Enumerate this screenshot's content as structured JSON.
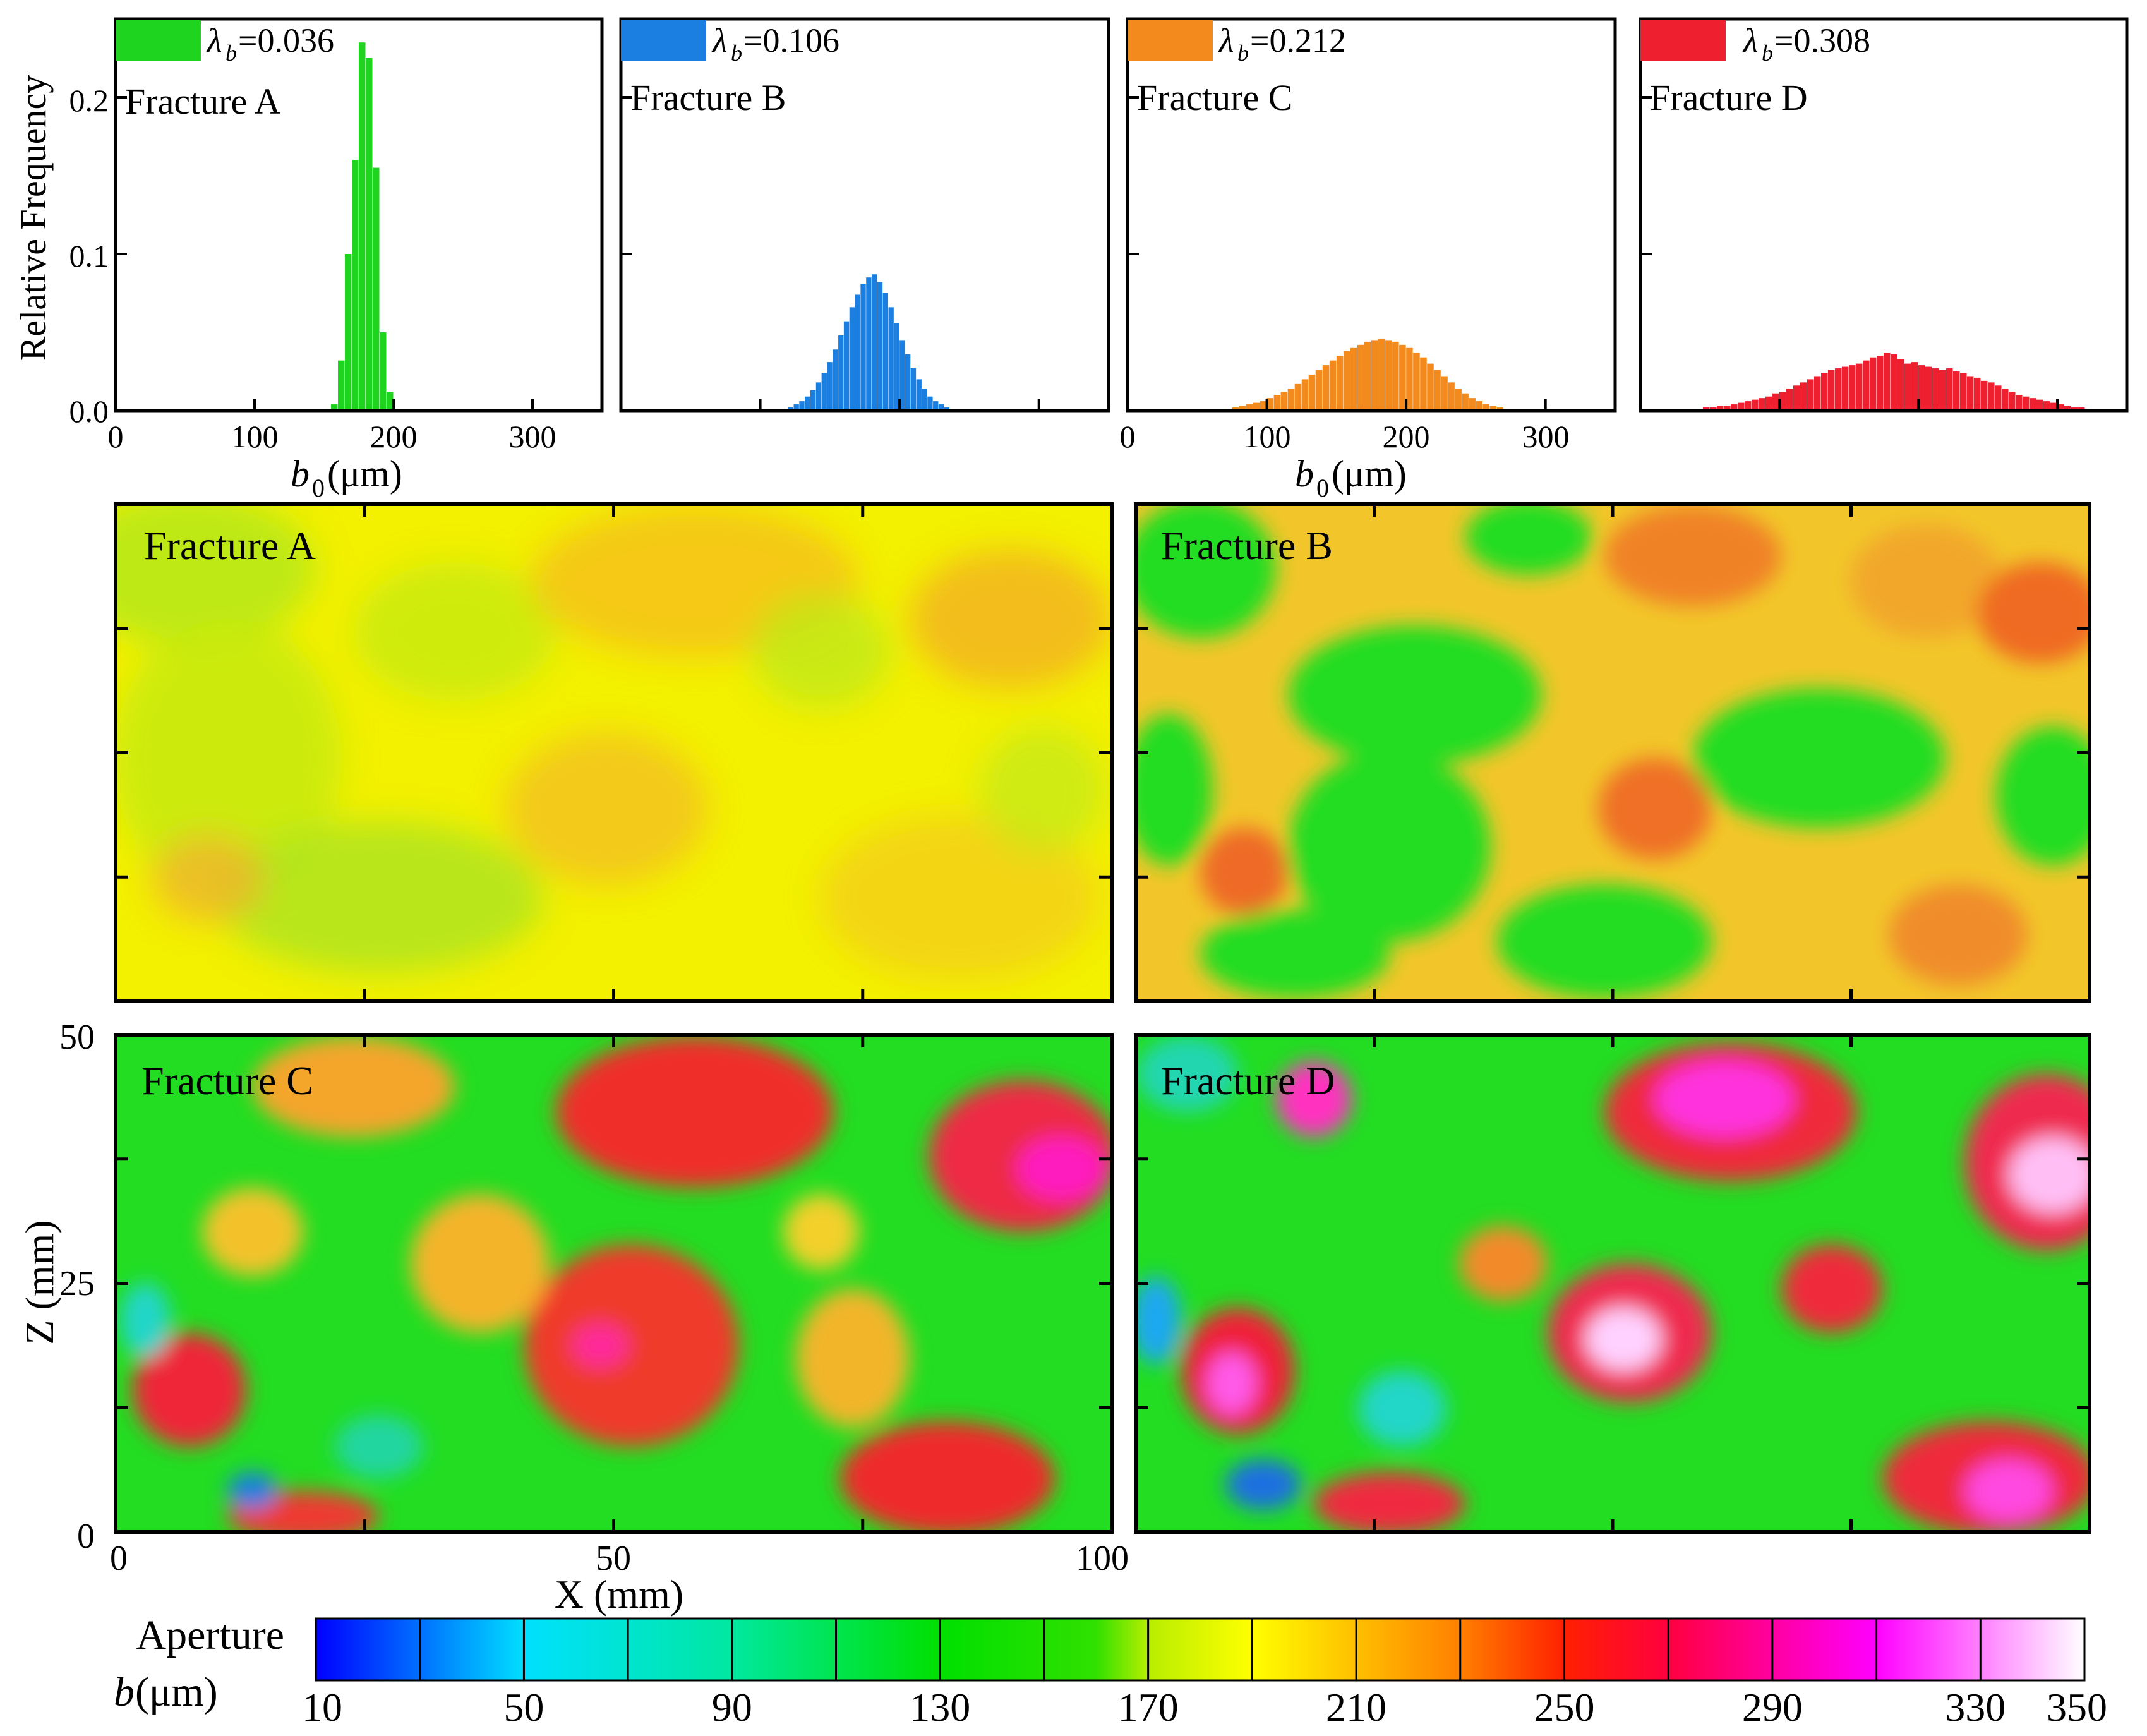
{
  "figure": {
    "xlabel_hist": "b",
    "xlabel_hist_sub": "0",
    "xlabel_hist_unit": " (μm)",
    "ylabel_hist": "Relative Frequency",
    "map_xlabel": "X (mm)",
    "map_ylabel": "Z (mm)",
    "colorbar_label_line1": "Aperture",
    "colorbar_label_line2_sym": "b",
    "colorbar_label_line2_unit": " (μm)",
    "lambda_symbol": "λ",
    "lambda_sub": "b"
  },
  "colors": {
    "green": "#1fd41f",
    "blue": "#1a7fe0",
    "orange": "#f28a1e",
    "red": "#ee2030"
  },
  "chart_data": [
    {
      "type": "bar",
      "name": "Fracture A histogram",
      "panel_label": "Fracture A",
      "legend": "=0.036",
      "lambda_b": 0.036,
      "color": "#1fd41f",
      "xlim": [
        0,
        350
      ],
      "ylim": [
        0,
        0.25
      ],
      "xticks": [
        "0",
        "100",
        "200",
        "300"
      ],
      "yticks": [
        "0.0",
        "0.1",
        "0.2"
      ],
      "bin_width": 5,
      "bins": [
        155,
        160,
        165,
        170,
        175,
        180,
        185,
        190,
        195
      ],
      "values": [
        0.004,
        0.032,
        0.1,
        0.16,
        0.235,
        0.225,
        0.155,
        0.05,
        0.012
      ]
    },
    {
      "type": "bar",
      "name": "Fracture B histogram",
      "panel_label": "Fracture B",
      "legend": "=0.106",
      "lambda_b": 0.106,
      "color": "#1a7fe0",
      "xlim": [
        0,
        350
      ],
      "ylim": [
        0,
        0.25
      ],
      "bin_width": 4,
      "bins": [
        120,
        124,
        128,
        132,
        136,
        140,
        144,
        148,
        152,
        156,
        160,
        164,
        168,
        172,
        176,
        180,
        184,
        188,
        192,
        196,
        200,
        204,
        208,
        212,
        216,
        220,
        224,
        228,
        232
      ],
      "values": [
        0.002,
        0.004,
        0.006,
        0.009,
        0.013,
        0.018,
        0.024,
        0.031,
        0.039,
        0.048,
        0.057,
        0.066,
        0.074,
        0.081,
        0.085,
        0.087,
        0.082,
        0.075,
        0.066,
        0.056,
        0.045,
        0.036,
        0.027,
        0.02,
        0.014,
        0.009,
        0.006,
        0.004,
        0.002
      ]
    },
    {
      "type": "bar",
      "name": "Fracture C histogram",
      "panel_label": "Fracture C",
      "legend": "=0.212",
      "lambda_b": 0.212,
      "color": "#f28a1e",
      "xlim": [
        0,
        350
      ],
      "ylim": [
        0,
        0.25
      ],
      "xticks": [
        "0",
        "100",
        "200",
        "300"
      ],
      "bin_width": 5,
      "bins": [
        75,
        80,
        85,
        90,
        95,
        100,
        105,
        110,
        115,
        120,
        125,
        130,
        135,
        140,
        145,
        150,
        155,
        160,
        165,
        170,
        175,
        180,
        185,
        190,
        195,
        200,
        205,
        210,
        215,
        220,
        225,
        230,
        235,
        240,
        245,
        250,
        255,
        260,
        265
      ],
      "values": [
        0.002,
        0.003,
        0.004,
        0.005,
        0.006,
        0.008,
        0.01,
        0.012,
        0.014,
        0.017,
        0.02,
        0.023,
        0.026,
        0.029,
        0.032,
        0.035,
        0.038,
        0.04,
        0.042,
        0.044,
        0.045,
        0.046,
        0.045,
        0.044,
        0.042,
        0.04,
        0.037,
        0.034,
        0.03,
        0.026,
        0.022,
        0.018,
        0.014,
        0.011,
        0.008,
        0.006,
        0.004,
        0.003,
        0.002
      ]
    },
    {
      "type": "bar",
      "name": "Fracture D histogram",
      "panel_label": "Fracture D",
      "legend": "=0.308",
      "lambda_b": 0.308,
      "color": "#ee2030",
      "xlim": [
        0,
        350
      ],
      "ylim": [
        0,
        0.25
      ],
      "bin_width": 5,
      "bins": [
        45,
        50,
        55,
        60,
        65,
        70,
        75,
        80,
        85,
        90,
        95,
        100,
        105,
        110,
        115,
        120,
        125,
        130,
        135,
        140,
        145,
        150,
        155,
        160,
        165,
        170,
        175,
        180,
        185,
        190,
        195,
        200,
        205,
        210,
        215,
        220,
        225,
        230,
        235,
        240,
        245,
        250,
        255,
        260,
        265,
        270,
        275,
        280,
        285,
        290,
        295,
        300,
        305,
        310,
        315
      ],
      "values": [
        0.002,
        0.002,
        0.003,
        0.003,
        0.004,
        0.005,
        0.006,
        0.007,
        0.008,
        0.009,
        0.011,
        0.012,
        0.014,
        0.016,
        0.018,
        0.02,
        0.022,
        0.024,
        0.026,
        0.027,
        0.028,
        0.029,
        0.03,
        0.032,
        0.034,
        0.035,
        0.037,
        0.036,
        0.033,
        0.03,
        0.031,
        0.029,
        0.028,
        0.027,
        0.026,
        0.027,
        0.025,
        0.024,
        0.022,
        0.021,
        0.019,
        0.018,
        0.016,
        0.014,
        0.012,
        0.01,
        0.009,
        0.008,
        0.007,
        0.006,
        0.005,
        0.004,
        0.003,
        0.002,
        0.002
      ]
    },
    {
      "type": "heatmap",
      "name": "Aperture maps",
      "panels": [
        "Fracture A",
        "Fracture B",
        "Fracture C",
        "Fracture D"
      ],
      "xlabel": "X (mm)",
      "ylabel": "Z (mm)",
      "xlim": [
        0,
        100
      ],
      "ylim": [
        0,
        50
      ],
      "xticks": [
        "0",
        "50",
        "100"
      ],
      "yticks": [
        "0",
        "25",
        "50"
      ],
      "colorbar": {
        "label": "Aperture b (μm)",
        "range": [
          10,
          350
        ],
        "ticks": [
          "10",
          "50",
          "90",
          "130",
          "170",
          "210",
          "250",
          "290",
          "330",
          "350"
        ]
      }
    }
  ]
}
